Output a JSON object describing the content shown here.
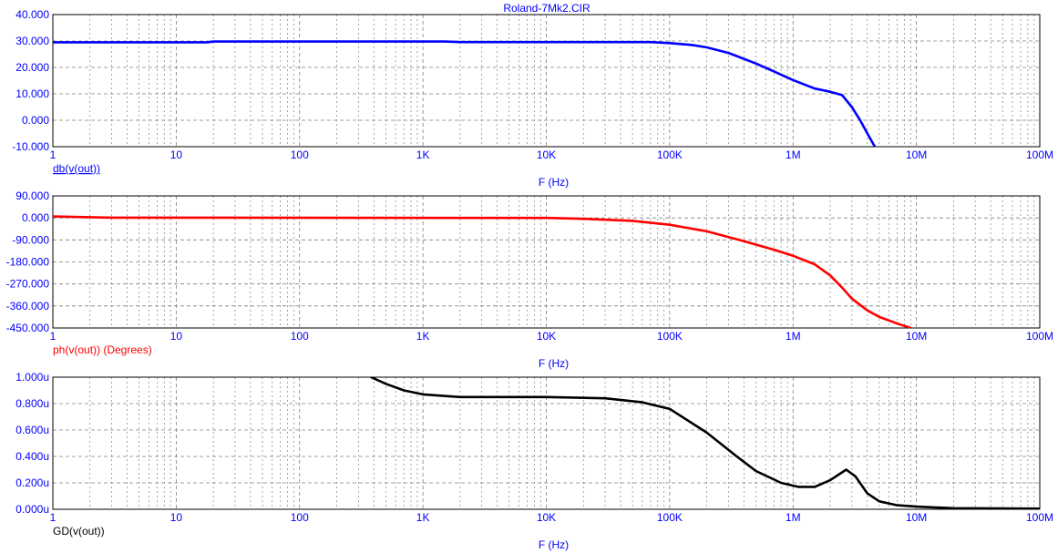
{
  "title": "Roland-7Mk2.CIR",
  "x_axis": {
    "label": "F (Hz)",
    "scale": "log",
    "range": [
      1,
      100000000
    ],
    "tick_values": [
      1,
      10,
      100,
      1000,
      10000,
      100000,
      1000000,
      10000000,
      100000000
    ],
    "tick_labels": [
      "1",
      "10",
      "100",
      "1K",
      "10K",
      "100K",
      "1M",
      "10M",
      "100M"
    ]
  },
  "colors": {
    "magnitude": "#0000ff",
    "phase": "#ff0000",
    "group_delay": "#000000",
    "axis_text": "#0000ff",
    "frame": "#000000",
    "grid": "#808080"
  },
  "chart_data": [
    {
      "type": "line",
      "name": "magnitude",
      "trace_label": "db(v(out))",
      "xlabel": "F (Hz)",
      "ylim": [
        -10,
        40
      ],
      "y_ticks": [
        40,
        30,
        20,
        10,
        0,
        -10
      ],
      "y_tick_labels": [
        "40.000",
        "30.000",
        "20.000",
        "10.000",
        "0.000",
        "-10.000"
      ],
      "grid": true,
      "points": [
        [
          1,
          29.5
        ],
        [
          18,
          29.5
        ],
        [
          20,
          29.8
        ],
        [
          1500,
          29.8
        ],
        [
          2000,
          29.6
        ],
        [
          70000,
          29.6
        ],
        [
          100000,
          29.2
        ],
        [
          150000,
          28.5
        ],
        [
          200000,
          27.6
        ],
        [
          300000,
          25.5
        ],
        [
          500000,
          21.5
        ],
        [
          700000,
          18.5
        ],
        [
          1000000,
          15.2
        ],
        [
          1500000,
          12
        ],
        [
          2000000,
          10.8
        ],
        [
          2500000,
          9.5
        ],
        [
          3000000,
          5
        ],
        [
          3500000,
          0
        ],
        [
          4000000,
          -5
        ],
        [
          4600000,
          -10
        ]
      ]
    },
    {
      "type": "line",
      "name": "phase",
      "trace_label": "ph(v(out)) (Degrees)",
      "xlabel": "F (Hz)",
      "ylim": [
        -450,
        90
      ],
      "y_ticks": [
        90,
        0,
        -90,
        -180,
        -270,
        -360,
        -450
      ],
      "y_tick_labels": [
        "90.000",
        "0.000",
        "-90.000",
        "-180.000",
        "-270.000",
        "-360.000",
        "-450.000"
      ],
      "grid": true,
      "points": [
        [
          1,
          6
        ],
        [
          3,
          1
        ],
        [
          10000,
          0
        ],
        [
          20000,
          -4
        ],
        [
          50000,
          -12
        ],
        [
          100000,
          -28
        ],
        [
          200000,
          -55
        ],
        [
          400000,
          -95
        ],
        [
          700000,
          -130
        ],
        [
          1000000,
          -155
        ],
        [
          1500000,
          -190
        ],
        [
          2000000,
          -235
        ],
        [
          2500000,
          -285
        ],
        [
          3000000,
          -330
        ],
        [
          4000000,
          -378
        ],
        [
          5000000,
          -405
        ],
        [
          7000000,
          -432
        ],
        [
          9000000,
          -450
        ]
      ]
    },
    {
      "type": "line",
      "name": "group_delay",
      "trace_label": "GD(v(out))",
      "xlabel": "F (Hz)",
      "ylim": [
        0,
        1
      ],
      "y_ticks": [
        1,
        0.8,
        0.6,
        0.4,
        0.2,
        0
      ],
      "y_tick_labels": [
        "1.000u",
        "0.800u",
        "0.600u",
        "0.400u",
        "0.200u",
        "0.000u"
      ],
      "grid": true,
      "points": [
        [
          380,
          1.0
        ],
        [
          500,
          0.95
        ],
        [
          700,
          0.9
        ],
        [
          1000,
          0.87
        ],
        [
          2000,
          0.85
        ],
        [
          10000,
          0.85
        ],
        [
          30000,
          0.84
        ],
        [
          60000,
          0.81
        ],
        [
          100000,
          0.76
        ],
        [
          200000,
          0.58
        ],
        [
          350000,
          0.4
        ],
        [
          500000,
          0.29
        ],
        [
          800000,
          0.2
        ],
        [
          1100000,
          0.17
        ],
        [
          1500000,
          0.17
        ],
        [
          2000000,
          0.22
        ],
        [
          2700000,
          0.3
        ],
        [
          3200000,
          0.25
        ],
        [
          4000000,
          0.12
        ],
        [
          5000000,
          0.06
        ],
        [
          7000000,
          0.03
        ],
        [
          10000000,
          0.02
        ],
        [
          20000000,
          0.008
        ],
        [
          100000000,
          0.005
        ]
      ]
    }
  ]
}
